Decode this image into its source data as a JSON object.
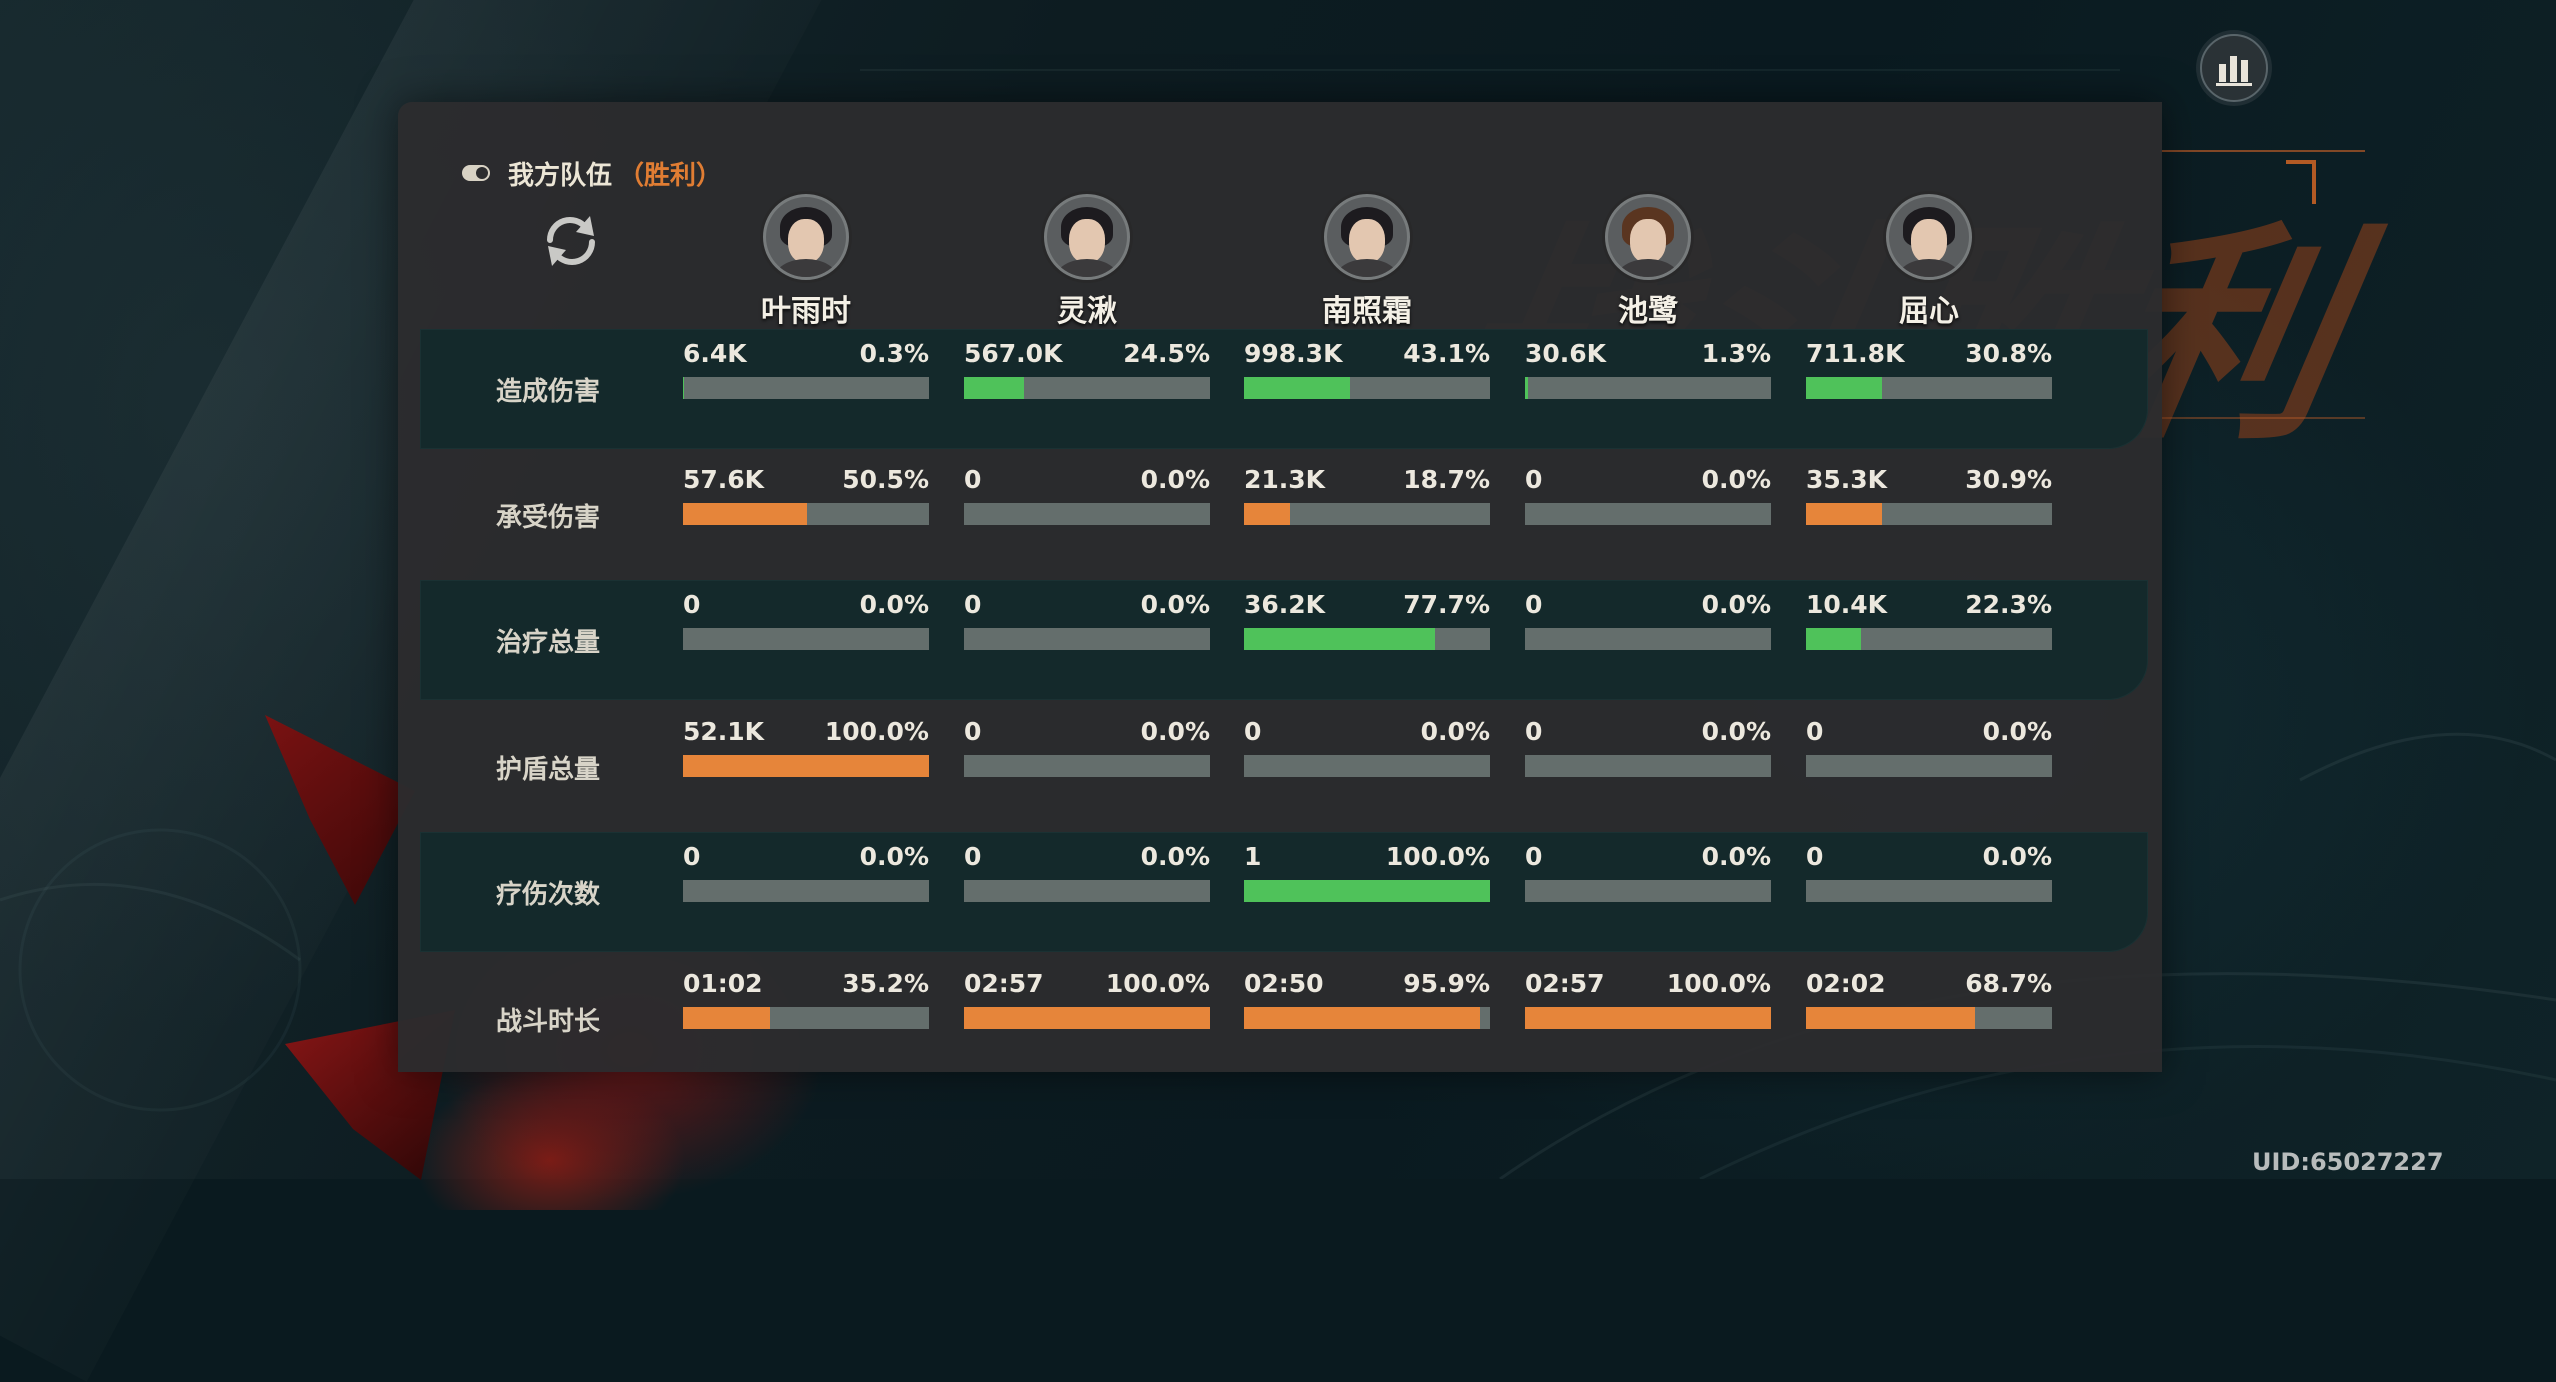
{
  "team": {
    "title": "我方队伍",
    "result": "（胜利）"
  },
  "icons": {
    "toggle": "toggle-icon",
    "refresh": "refresh-icon",
    "stats": "bar-chart-icon"
  },
  "colors": {
    "green": "#4fc25a",
    "orange": "#e6853a",
    "bar_bg": "#646e6c",
    "result": "#e07d33"
  },
  "background_art": {
    "text": "战斗胜利"
  },
  "characters": [
    {
      "name": "叶雨时"
    },
    {
      "name": "灵湫"
    },
    {
      "name": "南照霜"
    },
    {
      "name": "池鹭"
    },
    {
      "name": "屈心"
    }
  ],
  "rows": [
    {
      "label": "造成伤害",
      "color": "green",
      "cells": [
        {
          "value": "6.4K",
          "pct": "0.3%",
          "fill": 0.003
        },
        {
          "value": "567.0K",
          "pct": "24.5%",
          "fill": 0.245
        },
        {
          "value": "998.3K",
          "pct": "43.1%",
          "fill": 0.431
        },
        {
          "value": "30.6K",
          "pct": "1.3%",
          "fill": 0.013
        },
        {
          "value": "711.8K",
          "pct": "30.8%",
          "fill": 0.308
        }
      ]
    },
    {
      "label": "承受伤害",
      "color": "orange",
      "cells": [
        {
          "value": "57.6K",
          "pct": "50.5%",
          "fill": 0.505
        },
        {
          "value": "0",
          "pct": "0.0%",
          "fill": 0
        },
        {
          "value": "21.3K",
          "pct": "18.7%",
          "fill": 0.187
        },
        {
          "value": "0",
          "pct": "0.0%",
          "fill": 0
        },
        {
          "value": "35.3K",
          "pct": "30.9%",
          "fill": 0.309
        }
      ]
    },
    {
      "label": "治疗总量",
      "color": "green",
      "cells": [
        {
          "value": "0",
          "pct": "0.0%",
          "fill": 0
        },
        {
          "value": "0",
          "pct": "0.0%",
          "fill": 0
        },
        {
          "value": "36.2K",
          "pct": "77.7%",
          "fill": 0.777
        },
        {
          "value": "0",
          "pct": "0.0%",
          "fill": 0
        },
        {
          "value": "10.4K",
          "pct": "22.3%",
          "fill": 0.223
        }
      ]
    },
    {
      "label": "护盾总量",
      "color": "orange",
      "cells": [
        {
          "value": "52.1K",
          "pct": "100.0%",
          "fill": 1.0
        },
        {
          "value": "0",
          "pct": "0.0%",
          "fill": 0
        },
        {
          "value": "0",
          "pct": "0.0%",
          "fill": 0
        },
        {
          "value": "0",
          "pct": "0.0%",
          "fill": 0
        },
        {
          "value": "0",
          "pct": "0.0%",
          "fill": 0
        }
      ]
    },
    {
      "label": "疗伤次数",
      "color": "green",
      "cells": [
        {
          "value": "0",
          "pct": "0.0%",
          "fill": 0
        },
        {
          "value": "0",
          "pct": "0.0%",
          "fill": 0
        },
        {
          "value": "1",
          "pct": "100.0%",
          "fill": 1.0
        },
        {
          "value": "0",
          "pct": "0.0%",
          "fill": 0
        },
        {
          "value": "0",
          "pct": "0.0%",
          "fill": 0
        }
      ]
    },
    {
      "label": "战斗时长",
      "color": "orange",
      "cells": [
        {
          "value": "01:02",
          "pct": "35.2%",
          "fill": 0.352
        },
        {
          "value": "02:57",
          "pct": "100.0%",
          "fill": 1.0
        },
        {
          "value": "02:50",
          "pct": "95.9%",
          "fill": 0.959
        },
        {
          "value": "02:57",
          "pct": "100.0%",
          "fill": 1.0
        },
        {
          "value": "02:02",
          "pct": "68.7%",
          "fill": 0.687
        }
      ]
    }
  ],
  "uid": "UID:65027227"
}
